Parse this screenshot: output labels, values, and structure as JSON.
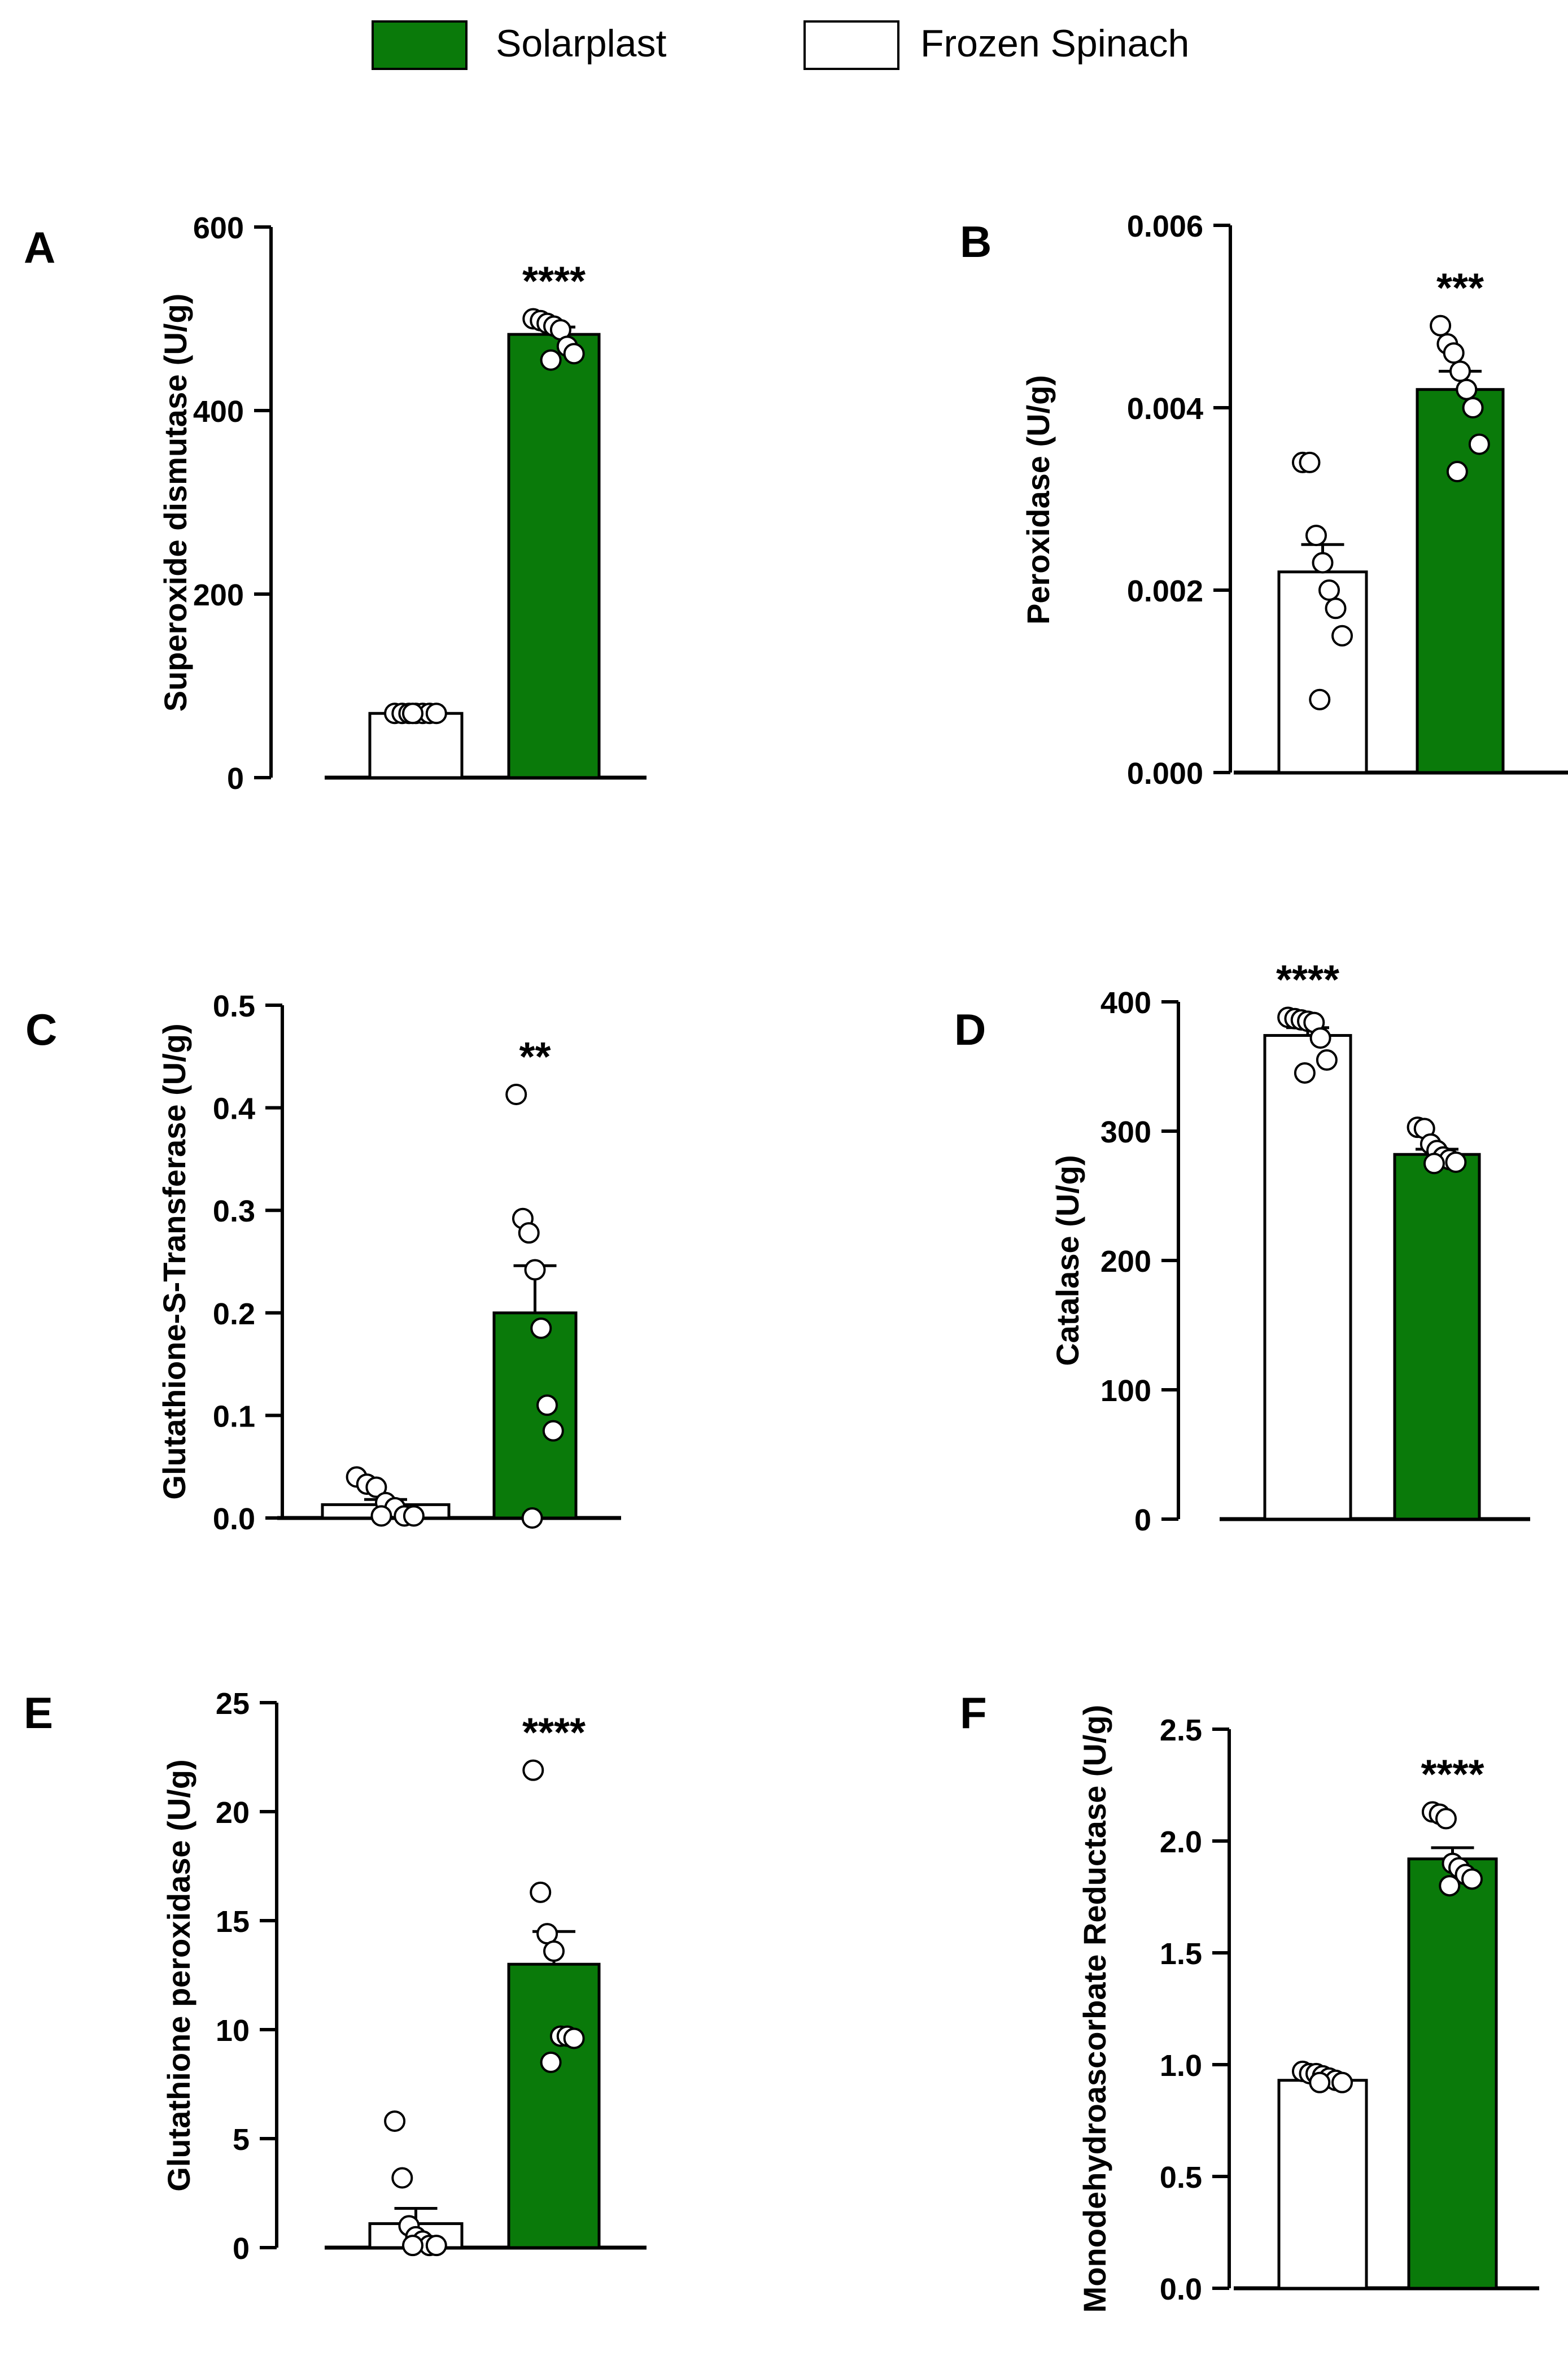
{
  "legend": [
    {
      "label": "Solarplast",
      "color": "#0a7a0a",
      "fill": "#0a7a0a"
    },
    {
      "label": "Frozen Spinach",
      "color": "#000000",
      "fill": "#ffffff"
    }
  ],
  "chart_data": [
    {
      "type": "bar",
      "panel": "A",
      "title": "",
      "xlabel": "",
      "ylabel": "Superoxide dismutase (U/g)",
      "ylim": [
        0,
        600
      ],
      "yticks": [
        "0",
        "200",
        "400",
        "600"
      ],
      "categories": [
        "Frozen Spinach",
        "Solarplast"
      ],
      "series": [
        {
          "name": "Frozen Spinach",
          "value": 70,
          "sem": 0,
          "points": [
            70,
            70,
            70,
            70,
            70,
            70,
            70,
            70
          ]
        },
        {
          "name": "Solarplast",
          "value": 483,
          "sem": 8,
          "points": [
            500,
            498,
            495,
            492,
            488,
            470,
            462,
            455
          ]
        }
      ],
      "significance": {
        "label": "****",
        "over": "Solarplast"
      }
    },
    {
      "type": "bar",
      "panel": "B",
      "title": "",
      "xlabel": "",
      "ylabel": "Peroxidase (U/g)",
      "ylim": [
        0,
        0.006
      ],
      "yticks": [
        "0.000",
        "0.002",
        "0.004",
        "0.006"
      ],
      "categories": [
        "Frozen Spinach",
        "Solarplast"
      ],
      "series": [
        {
          "name": "Frozen Spinach",
          "value": 0.0022,
          "sem": 0.0003,
          "points": [
            0.0034,
            0.0034,
            0.0026,
            0.0023,
            0.002,
            0.0018,
            0.0015,
            0.0008
          ]
        },
        {
          "name": "Solarplast",
          "value": 0.0042,
          "sem": 0.0002,
          "points": [
            0.0049,
            0.0047,
            0.0046,
            0.0044,
            0.0042,
            0.004,
            0.0036,
            0.0033
          ]
        }
      ],
      "significance": {
        "label": "***",
        "over": "Solarplast"
      }
    },
    {
      "type": "bar",
      "panel": "C",
      "title": "",
      "xlabel": "",
      "ylabel": "Glutathione-S-Transferase (U/g)",
      "ylim": [
        0,
        0.5
      ],
      "yticks": [
        "0.0",
        "0.1",
        "0.2",
        "0.3",
        "0.4",
        "0.5"
      ],
      "categories": [
        "Frozen Spinach",
        "Solarplast"
      ],
      "series": [
        {
          "name": "Frozen Spinach",
          "value": 0.013,
          "sem": 0.005,
          "points": [
            0.04,
            0.033,
            0.03,
            0.015,
            0.01,
            0.002,
            0.002,
            0.002
          ]
        },
        {
          "name": "Solarplast",
          "value": 0.2,
          "sem": 0.046,
          "points": [
            0.413,
            0.292,
            0.278,
            0.242,
            0.185,
            0.11,
            0.085,
            0.0
          ]
        }
      ],
      "significance": {
        "label": "**",
        "over": "Solarplast"
      }
    },
    {
      "type": "bar",
      "panel": "D",
      "title": "",
      "xlabel": "",
      "ylabel": "Catalase (U/g)",
      "ylim": [
        0,
        400
      ],
      "yticks": [
        "0",
        "100",
        "200",
        "300",
        "400"
      ],
      "categories": [
        "Frozen Spinach",
        "Solarplast"
      ],
      "series": [
        {
          "name": "Frozen Spinach",
          "value": 374,
          "sem": 6,
          "points": [
            388,
            387,
            386,
            385,
            384,
            372,
            355,
            345
          ]
        },
        {
          "name": "Solarplast",
          "value": 282,
          "sem": 4,
          "points": [
            303,
            302,
            290,
            285,
            280,
            278,
            276,
            275
          ]
        }
      ],
      "significance": {
        "label": "****",
        "over": "Frozen Spinach"
      }
    },
    {
      "type": "bar",
      "panel": "E",
      "title": "",
      "xlabel": "",
      "ylabel": "Glutathione peroxidase (U/g)",
      "ylim": [
        0,
        25
      ],
      "yticks": [
        "0",
        "5",
        "10",
        "15",
        "20",
        "25"
      ],
      "categories": [
        "Frozen Spinach",
        "Solarplast"
      ],
      "series": [
        {
          "name": "Frozen Spinach",
          "value": 1.1,
          "sem": 0.7,
          "points": [
            5.8,
            3.2,
            1.0,
            0.5,
            0.3,
            0.1,
            0.1,
            0.1
          ]
        },
        {
          "name": "Solarplast",
          "value": 13.0,
          "sem": 1.5,
          "points": [
            21.9,
            16.3,
            14.4,
            13.6,
            9.7,
            9.7,
            9.6,
            8.5
          ]
        }
      ],
      "significance": {
        "label": "****",
        "over": "Solarplast"
      }
    },
    {
      "type": "bar",
      "panel": "F",
      "title": "",
      "xlabel": "",
      "ylabel": "Monodehydroascorbate Reductase (U/g)",
      "ylim": [
        0,
        2.5
      ],
      "yticks": [
        "0.0",
        "0.5",
        "1.0",
        "1.5",
        "2.0",
        "2.5"
      ],
      "categories": [
        "Frozen Spinach",
        "Solarplast"
      ],
      "series": [
        {
          "name": "Frozen Spinach",
          "value": 0.93,
          "sem": 0.01,
          "points": [
            0.97,
            0.96,
            0.96,
            0.95,
            0.94,
            0.93,
            0.92,
            0.92
          ]
        },
        {
          "name": "Solarplast",
          "value": 1.92,
          "sem": 0.05,
          "points": [
            2.13,
            2.12,
            2.1,
            1.9,
            1.88,
            1.85,
            1.83,
            1.8
          ]
        }
      ],
      "significance": {
        "label": "****",
        "over": "Solarplast"
      }
    }
  ]
}
